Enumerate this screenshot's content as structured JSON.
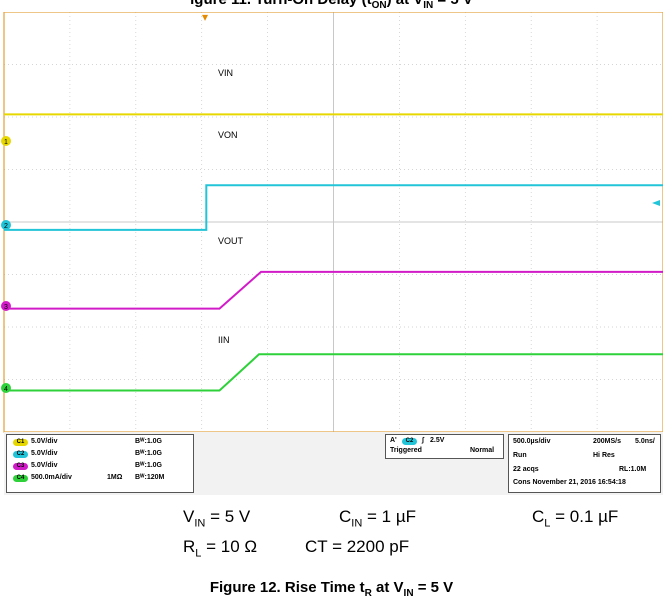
{
  "header_partial": "gure 11. Turn-On Delay (t_ON) at V_IN = 5 V (cropped at top)",
  "header_visible": "igure 11. Turn-On Delay (t",
  "header_sub": "ON",
  "header_rest": ") at V",
  "header_sub2": "IN",
  "header_tail": " = 5 V",
  "scope": {
    "background": "#ffffff",
    "grid_color": "#c8c8c8",
    "trace_labels": [
      "VIN",
      "VON",
      "VOUT",
      "IIN"
    ],
    "channel_markers": [
      "1",
      "2",
      "3",
      "4"
    ],
    "trigger_arrow": "▾"
  },
  "status": {
    "channels": [
      {
        "badge": "C1",
        "scale": "5.0V/div",
        "coupling": "",
        "bw": "Bᵂ:1.0G",
        "color": "#e6d700"
      },
      {
        "badge": "C2",
        "scale": "5.0V/div",
        "coupling": "",
        "bw": "Bᵂ:1.0G",
        "color": "#22c4d8"
      },
      {
        "badge": "C3",
        "scale": "5.0V/div",
        "coupling": "",
        "bw": "Bᵂ:1.0G",
        "color": "#d21bc8"
      },
      {
        "badge": "C4",
        "scale": "500.0mA/div",
        "coupling": "1MΩ",
        "bw": "Bᵂ:120M",
        "color": "#2ed13a"
      }
    ],
    "trigger": {
      "a_label": "A'",
      "channel_badge": "C2",
      "slope": "∫",
      "level": "2.5V",
      "state": "Triggered",
      "mode": "Normal"
    },
    "acquisition": {
      "timebase": "500.0µs/div",
      "sample_rate": "200MS/s",
      "resolution_time": "5.0ns/",
      "run_state": "Run",
      "acq_mode": "Hi Res",
      "acqs": "22 acqs",
      "record_length": "RL:1.0M",
      "date_line": "Cons  November 21, 2016   16:54:18"
    }
  },
  "conditions": {
    "vin": {
      "sym": "V",
      "sub": "IN",
      "val": " = 5 V"
    },
    "cin": {
      "sym": "C",
      "sub": "IN",
      "val": " = 1 µF"
    },
    "cl": {
      "sym": "C",
      "sub": "L",
      "val": " = 0.1 µF"
    },
    "rl": {
      "sym": "R",
      "sub": "L",
      "val": " = 10 Ω"
    },
    "ct": {
      "text": "CT = 2200 pF"
    }
  },
  "caption": {
    "pre": "Figure 12. Rise Time t",
    "sub1": "R",
    "mid": " at V",
    "sub2": "IN",
    "post": " = 5 V"
  },
  "chart_data": {
    "type": "line",
    "x_unit": "div (500.0µs/div)",
    "xlim": [
      0,
      10
    ],
    "ylim": [
      0,
      8
    ],
    "series": [
      {
        "name": "VIN",
        "color": "#e6d700",
        "x": [
          0,
          10
        ],
        "y": [
          6.05,
          6.05
        ]
      },
      {
        "name": "VON",
        "color": "#22c4d8",
        "x": [
          0,
          3.07,
          3.07,
          10
        ],
        "y": [
          3.85,
          3.85,
          4.7,
          4.7
        ]
      },
      {
        "name": "VOUT",
        "color": "#d21bc8",
        "x": [
          0,
          3.27,
          3.9,
          10
        ],
        "y": [
          2.35,
          2.35,
          3.05,
          3.05
        ]
      },
      {
        "name": "IIN",
        "color": "#2ed13a",
        "x": [
          0,
          3.27,
          3.87,
          10
        ],
        "y": [
          0.79,
          0.79,
          1.48,
          1.48
        ]
      }
    ]
  }
}
